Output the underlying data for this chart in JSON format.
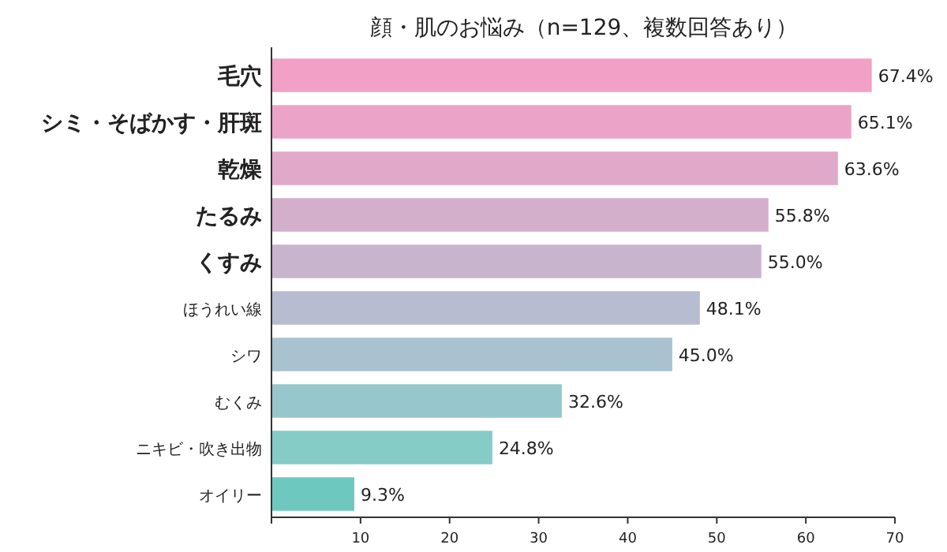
{
  "chart_data": {
    "type": "bar",
    "orientation": "horizontal",
    "title": "顔・肌のお悩み（n=129、複数回答あり）",
    "categories": [
      "毛穴",
      "シミ・そばかす・肝斑",
      "乾燥",
      "たるみ",
      "くすみ",
      "ほうれい線",
      "シワ",
      "むくみ",
      "ニキビ・吹き出物",
      "オイリー"
    ],
    "values": [
      67.4,
      65.1,
      63.6,
      55.8,
      55.0,
      48.1,
      45.0,
      32.6,
      24.8,
      9.3
    ],
    "value_labels": [
      "67.4%",
      "65.1%",
      "63.6%",
      "55.8%",
      "55.0%",
      "48.1%",
      "45.0%",
      "32.6%",
      "24.8%",
      "9.3%"
    ],
    "colors": [
      "#f2a0c5",
      "#eba4c7",
      "#e0a9c9",
      "#d3afcb",
      "#c8b5cd",
      "#b8bcd0",
      "#a8c2cf",
      "#97c7cc",
      "#85cbc6",
      "#6dc9c0"
    ],
    "xlim": [
      0,
      70
    ],
    "xticks": [
      {
        "value": 0,
        "label": null
      },
      10,
      20,
      30,
      40,
      50,
      60,
      70
    ],
    "grid": false
  }
}
